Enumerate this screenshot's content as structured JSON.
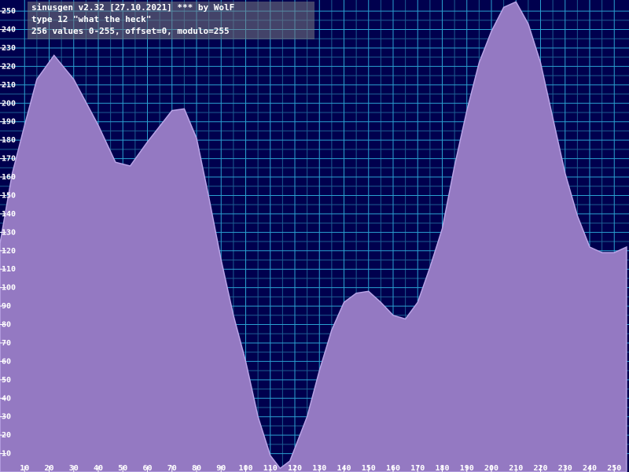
{
  "chart_data": {
    "type": "area",
    "title": "sinusgen v2.32 [27.10.2021] *** by WolF",
    "subtitle": "type 12 \"what the heck\"",
    "annotation": "256 values 0-255, offset=0, modulo=255",
    "x": [
      0,
      5,
      10,
      15,
      22,
      30,
      40,
      47,
      53,
      60,
      70,
      75,
      80,
      85,
      90,
      95,
      100,
      105,
      110,
      114,
      118,
      125,
      130,
      135,
      140,
      145,
      150,
      155,
      160,
      165,
      170,
      175,
      180,
      185,
      190,
      195,
      200,
      205,
      210,
      215,
      220,
      225,
      230,
      235,
      240,
      245,
      250,
      255
    ],
    "values": [
      124,
      162,
      188,
      213,
      226,
      213,
      188,
      168,
      166,
      179,
      196,
      197,
      181,
      149,
      115,
      85,
      60,
      30,
      9,
      2,
      6,
      30,
      55,
      77,
      92,
      97,
      98,
      92,
      85,
      83,
      92,
      111,
      132,
      166,
      196,
      222,
      239,
      252,
      255,
      243,
      222,
      192,
      162,
      139,
      122,
      119,
      119,
      122
    ],
    "color": "#9479c2",
    "xlim": [
      0,
      256
    ],
    "ylim": [
      0,
      256
    ],
    "xticks": [
      10,
      20,
      30,
      40,
      50,
      60,
      70,
      80,
      90,
      100,
      110,
      120,
      130,
      140,
      150,
      160,
      170,
      180,
      190,
      200,
      210,
      220,
      230,
      240,
      250
    ],
    "yticks": [
      10,
      20,
      30,
      40,
      50,
      60,
      70,
      80,
      90,
      100,
      110,
      120,
      130,
      140,
      150,
      160,
      170,
      180,
      190,
      200,
      210,
      220,
      230,
      240,
      250
    ],
    "grid": true
  }
}
